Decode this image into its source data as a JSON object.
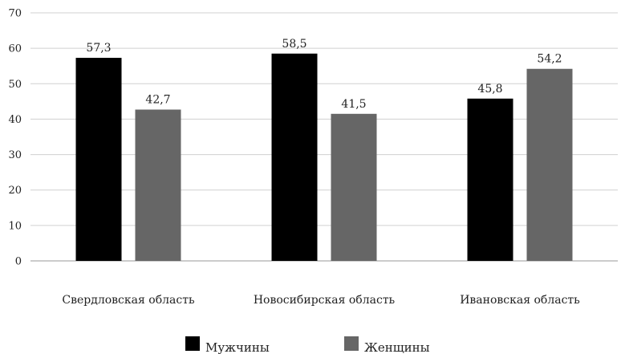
{
  "chart_data": {
    "type": "bar",
    "categories": [
      "Свердловская область",
      "Новосибирская область",
      "Ивановская область"
    ],
    "series": [
      {
        "name": "Мужчины",
        "values": [
          57.3,
          58.5,
          45.8
        ],
        "labels": [
          "57,3",
          "58,5",
          "45,8"
        ],
        "color": "#000000"
      },
      {
        "name": "Женщины",
        "values": [
          42.7,
          41.5,
          54.2
        ],
        "labels": [
          "42,7",
          "41,5",
          "54,2"
        ],
        "color": "#666666"
      }
    ],
    "yticks": [
      "0",
      "10",
      "20",
      "30",
      "40",
      "50",
      "60",
      "70"
    ],
    "ylim": [
      0,
      70
    ],
    "grid": true,
    "legend_position": "bottom"
  }
}
